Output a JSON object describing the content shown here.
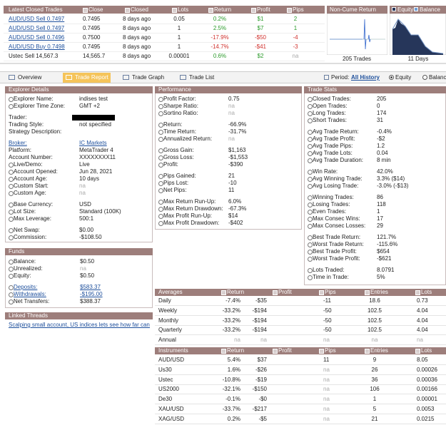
{
  "latest_trades": {
    "columns": [
      "Latest Closed Trades",
      "Close",
      "Closed",
      "Lots",
      "Return",
      "Profit",
      "Pips"
    ],
    "rows": [
      [
        "AUD/USD Sell 0.7497",
        "0.7495",
        "8 days ago",
        "0.05",
        "0.2%",
        "$1",
        "2"
      ],
      [
        "AUD/USD Sell 0.7497",
        "0.7495",
        "8 days ago",
        "1",
        "2.5%",
        "$7",
        "1"
      ],
      [
        "AUD/USD Sell 0.7496",
        "0.7500",
        "8 days ago",
        "1",
        "-17.9%",
        "-$50",
        "-4"
      ],
      [
        "AUD/USD Buy 0.7498",
        "0.7495",
        "8 days ago",
        "1",
        "-14.7%",
        "-$41",
        "-3"
      ],
      [
        "Ustec Sell 14,567.3",
        "14,565.7",
        "8 days ago",
        "0.00001",
        "0.6%",
        "$2",
        "na"
      ]
    ],
    "linked_rows": [
      true,
      true,
      true,
      true,
      false
    ]
  },
  "mini_charts": {
    "non_cume": {
      "title": "Non-Cume Return",
      "footer": "205 Trades"
    },
    "equity": {
      "legend": [
        "Equity",
        "Balance"
      ],
      "footer": "11 Days"
    }
  },
  "tabs": {
    "items": [
      "Overview",
      "Trade Report",
      "Trade Graph",
      "Trade List"
    ],
    "active": 1,
    "period_label": "Period:",
    "period_value": "All History",
    "modes": [
      "Equity",
      "Balance"
    ],
    "selected_mode": 0
  },
  "explorer": {
    "title": "Explorer Details",
    "groups": [
      [
        {
          "label": "Explorer Name:",
          "value": "indises test",
          "info": true
        },
        {
          "label": "Explorer Time Zone:",
          "value": "GMT +2",
          "info": true
        }
      ],
      [
        {
          "label": "Trader:",
          "redacted": true
        },
        {
          "label": "Trading Style:",
          "value": "not specified"
        },
        {
          "label": "Strategy Description:"
        }
      ],
      [
        {
          "label": "Broker:",
          "value": "IC Markets",
          "link": true
        },
        {
          "label": "Platform:",
          "value": "MetaTrader 4"
        },
        {
          "label": "Account Number:",
          "value": "XXXXXXXX11"
        },
        {
          "label": "Live/Demo:",
          "value": "Live",
          "info": true
        },
        {
          "label": "Account Opened:",
          "value": "Jun 28, 2021",
          "info": true
        },
        {
          "label": "Account Age:",
          "value": "10 days",
          "info": true
        },
        {
          "label": "Custom Start:",
          "value": "na",
          "info": true
        },
        {
          "label": "Custom Age:",
          "value": "na",
          "info": true
        }
      ],
      [
        {
          "label": "Base Currency:",
          "value": "USD",
          "info": true
        },
        {
          "label": "Lot Size:",
          "value": "Standard (100K)",
          "info": true
        },
        {
          "label": "Max Leverage:",
          "value": "500:1",
          "info": true
        }
      ],
      [
        {
          "label": "Net Swap:",
          "value": "$0.00",
          "info": true
        },
        {
          "label": "Commission:",
          "value": "-$108.50",
          "info": true
        }
      ]
    ]
  },
  "performance": {
    "title": "Performance",
    "groups": [
      [
        {
          "label": "Profit Factor:",
          "value": "0.75",
          "info": true
        },
        {
          "label": "Sharpe Ratio:",
          "value": "na",
          "info": true
        },
        {
          "label": "Sortino Ratio:",
          "value": "na",
          "info": true
        }
      ],
      [
        {
          "label": "Return:",
          "value": "-66.9%",
          "info": true
        },
        {
          "label": "Time Return:",
          "value": "-31.7%",
          "info": true
        },
        {
          "label": "Annualized Return:",
          "value": "na",
          "info": true
        }
      ],
      [
        {
          "label": "Gross Gain:",
          "value": "$1,163",
          "info": true
        },
        {
          "label": "Gross Loss:",
          "value": "-$1,553",
          "info": true
        },
        {
          "label": "Profit:",
          "value": "-$390",
          "info": true
        }
      ],
      [
        {
          "label": "Pips Gained:",
          "value": "21",
          "info": true
        },
        {
          "label": "Pips Lost:",
          "value": "-10",
          "info": true
        },
        {
          "label": "Net Pips:",
          "value": "11",
          "info": true
        }
      ],
      [
        {
          "label": "Max Return Run-Up:",
          "value": "6.0%",
          "info": true
        },
        {
          "label": "Max Return Drawdown:",
          "value": "-67.3%",
          "info": true
        },
        {
          "label": "Max Profit Run-Up:",
          "value": "$14",
          "info": true
        },
        {
          "label": "Max Profit Drawdown:",
          "value": "-$402",
          "info": true
        }
      ]
    ]
  },
  "trade_stats": {
    "title": "Trade Stats",
    "groups": [
      [
        {
          "label": "Closed Trades:",
          "value": "205",
          "info": true
        },
        {
          "label": "Open Trades:",
          "value": "0",
          "info": true
        },
        {
          "label": "Long Trades:",
          "value": "174",
          "info": true
        },
        {
          "label": "Short Trades:",
          "value": "31",
          "info": true
        }
      ],
      [
        {
          "label": "Avg Trade Return:",
          "value": "-0.4%",
          "info": true
        },
        {
          "label": "Avg Trade Profit:",
          "value": "-$2",
          "info": true
        },
        {
          "label": "Avg Trade Pips:",
          "value": "1.2",
          "info": true
        },
        {
          "label": "Avg Trade Lots:",
          "value": "0.04",
          "info": true
        },
        {
          "label": "Avg Trade Duration:",
          "value": "8 min",
          "info": true
        }
      ],
      [
        {
          "label": "Win Rate:",
          "value": "42.0%",
          "info": true
        },
        {
          "label": "Avg Winning Trade:",
          "value": "3.3% ($14)",
          "info": true
        },
        {
          "label": "Avg Losing Trade:",
          "value": "-3.0% (-$13)",
          "info": true
        }
      ],
      [
        {
          "label": "Winning Trades:",
          "value": "86",
          "info": true
        },
        {
          "label": "Losing Trades:",
          "value": "118",
          "info": true
        },
        {
          "label": "Even Trades:",
          "value": "1",
          "info": true
        },
        {
          "label": "Max Consec Wins:",
          "value": "17",
          "info": true
        },
        {
          "label": "Max Consec Losses:",
          "value": "29",
          "info": true
        }
      ],
      [
        {
          "label": "Best Trade Return:",
          "value": "121.7%",
          "info": true
        },
        {
          "label": "Worst Trade Return:",
          "value": "-115.6%",
          "info": true
        },
        {
          "label": "Best Trade Profit:",
          "value": "$654",
          "info": true
        },
        {
          "label": "Worst Trade Profit:",
          "value": "-$621",
          "info": true
        }
      ],
      [
        {
          "label": "Lots Traded:",
          "value": "8.0791",
          "info": true
        },
        {
          "label": "Time in Trade:",
          "value": "5%",
          "info": true
        }
      ]
    ]
  },
  "funds": {
    "title": "Funds",
    "groups": [
      [
        {
          "label": "Balance:",
          "value": "$0.50",
          "info": true
        },
        {
          "label": "Unrealized:",
          "value": "na",
          "info": true
        },
        {
          "label": "Equity:",
          "value": "$0.50",
          "info": true
        }
      ],
      [
        {
          "label": "Deposits:",
          "value": "$583.37",
          "info": true,
          "link": true
        },
        {
          "label": "Withdrawals:",
          "value": "-$195.00",
          "info": true,
          "link": true
        },
        {
          "label": "Net Transfers:",
          "value": "$388.37",
          "info": true
        }
      ]
    ]
  },
  "linked_threads": {
    "title": "Linked Threads",
    "items": [
      "Scalping small account, US indices lets see how far can we"
    ]
  },
  "averages": {
    "columns": [
      "Averages",
      "Return",
      "Profit",
      "Pips",
      "Entries",
      "Lots"
    ],
    "rows": [
      [
        "Daily",
        "-7.4%",
        "-$35",
        "-11",
        "18.6",
        "0.73"
      ],
      [
        "Weekly",
        "-33.2%",
        "-$194",
        "-50",
        "102.5",
        "4.04"
      ],
      [
        "Monthly",
        "-33.2%",
        "-$194",
        "-50",
        "102.5",
        "4.04"
      ],
      [
        "Quarterly",
        "-33.2%",
        "-$194",
        "-50",
        "102.5",
        "4.04"
      ],
      [
        "Annual",
        "na",
        "na",
        "na",
        "na",
        "na"
      ]
    ]
  },
  "instruments": {
    "columns": [
      "Instruments",
      "Return",
      "Profit",
      "Pips",
      "Entries",
      "Lots"
    ],
    "rows": [
      [
        "AUD/USD",
        "5.4%",
        "$37",
        "11",
        "9",
        "8.05"
      ],
      [
        "Us30",
        "1.6%",
        "-$26",
        "na",
        "26",
        "0.00026"
      ],
      [
        "Ustec",
        "-10.8%",
        "-$19",
        "na",
        "36",
        "0.00036"
      ],
      [
        "US2000",
        "-32.1%",
        "-$150",
        "na",
        "106",
        "0.00166"
      ],
      [
        "De30",
        "-0.1%",
        "-$0",
        "na",
        "1",
        "0.00001"
      ],
      [
        "XAU/USD",
        "-33.7%",
        "-$217",
        "na",
        "5",
        "0.0053"
      ],
      [
        "XAG/USD",
        "0.2%",
        "-$5",
        "na",
        "21",
        "0.0215"
      ]
    ]
  }
}
